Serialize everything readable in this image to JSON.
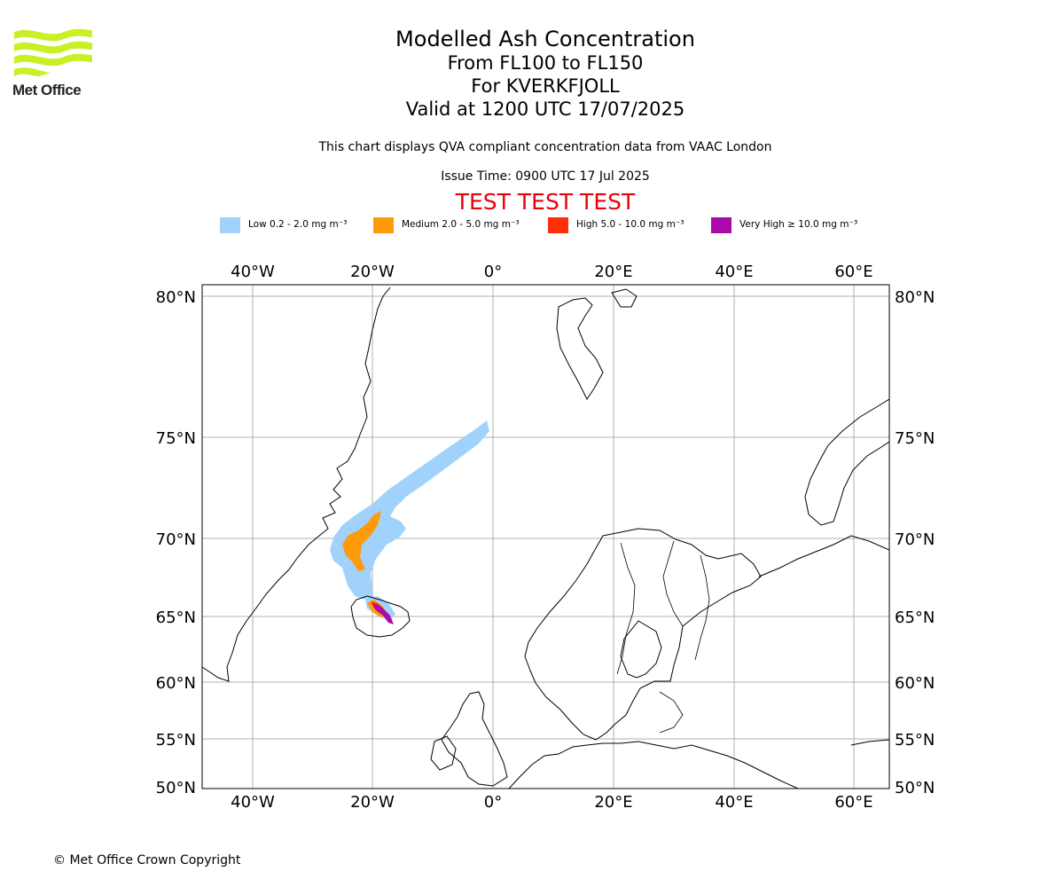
{
  "logo": {
    "text": "Met Office",
    "colors": {
      "waves": "#c8f024"
    }
  },
  "header": {
    "title": "Modelled Ash Concentration",
    "levels": "From FL100 to FL150",
    "volcano": "For KVERKFJOLL",
    "valid": "Valid at 1200 UTC 17/07/2025",
    "note": "This chart displays QVA compliant concentration data from VAAC London",
    "issue": "Issue Time: 0900 UTC 17 Jul 2025",
    "test": "TEST TEST TEST"
  },
  "legend": [
    {
      "id": "low",
      "label": "Low 0.2 - 2.0 mg m⁻³",
      "color": "#a0d2fb"
    },
    {
      "id": "medium",
      "label": "Medium 2.0 - 5.0 mg m⁻³",
      "color": "#ff9a0a"
    },
    {
      "id": "high",
      "label": "High 5.0 - 10.0 mg m⁻³",
      "color": "#ff2d0a"
    },
    {
      "id": "very-high",
      "label": "Very High  ≥  10.0 mg m⁻³",
      "color": "#aa0aaa"
    }
  ],
  "map": {
    "lon_ticks": [
      "40°W",
      "20°W",
      "0°",
      "20°E",
      "40°E",
      "60°E"
    ],
    "lat_ticks": [
      "80°N",
      "75°N",
      "70°N",
      "65°N",
      "60°N",
      "55°N",
      "50°N"
    ],
    "colors": {
      "grid": "#b0b0b0",
      "coast": "#000000"
    }
  },
  "footer": {
    "copyright": "© Met Office Crown Copyright"
  }
}
